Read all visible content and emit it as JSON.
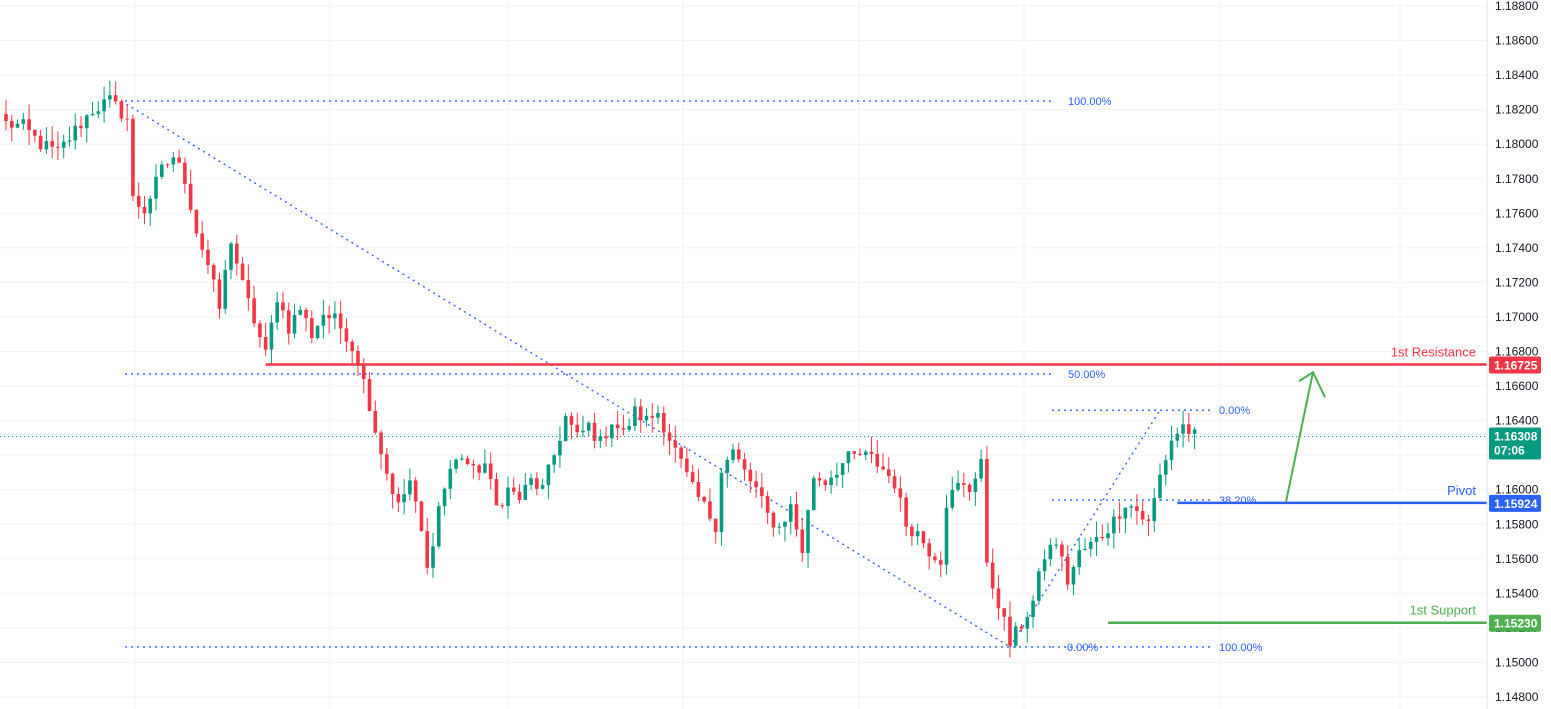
{
  "chart_data": {
    "type": "candlestick",
    "instrument_note": "",
    "y_axis": {
      "ticks": [
        "1.18800",
        "1.18600",
        "1.18400",
        "1.18200",
        "1.18000",
        "1.17800",
        "1.17600",
        "1.17400",
        "1.17200",
        "1.17000",
        "1.16800",
        "1.16600",
        "1.16400",
        "1.16200",
        "1.16000",
        "1.15800",
        "1.15600",
        "1.15400",
        "1.15200",
        "1.15000",
        "1.14800"
      ],
      "ylim": [
        1.1478,
        1.1881
      ],
      "position": "right"
    },
    "grid": true,
    "last_price": {
      "value": "1.16308",
      "countdown": "07:06",
      "color": "#089981"
    },
    "levels": [
      {
        "name": "1st Resistance",
        "price": 1.16725,
        "badge": "1.16725",
        "color": "#f23645",
        "start_index": 45
      },
      {
        "name": "Pivot",
        "price": 1.15924,
        "badge": "1.15924",
        "color": "#2962ff",
        "start_index": 203
      },
      {
        "name": "1st Support",
        "price": 1.1523,
        "badge": "1.15230",
        "color": "#4caf50",
        "start_index": 191
      }
    ],
    "fib_retracements": [
      {
        "from_index": 20,
        "to_index": 174,
        "price_high": 1.1825,
        "price_low": 1.1509,
        "labels": [
          {
            "text": "100.00%",
            "price": 1.1825
          },
          {
            "text": "50.00%",
            "price": 1.1667
          },
          {
            "text": "0.00%",
            "price": 1.1509
          }
        ]
      },
      {
        "from_index": 174,
        "to_index": 200,
        "price_high": 1.1646,
        "price_low": 1.1509,
        "labels": [
          {
            "text": "0.00%",
            "price": 1.1646
          },
          {
            "text": "38.20%",
            "price": 1.1594
          },
          {
            "text": "100.00%",
            "price": 1.1509
          }
        ]
      }
    ],
    "projection_arrow": {
      "from_price": 1.1593,
      "to_price": 1.1668,
      "color": "#4caf50"
    },
    "anchors": [
      [
        0,
        1.1812
      ],
      [
        3,
        1.181
      ],
      [
        6,
        1.18
      ],
      [
        9,
        1.1795
      ],
      [
        12,
        1.1808
      ],
      [
        15,
        1.182
      ],
      [
        18,
        1.1825
      ],
      [
        21,
        1.1815
      ],
      [
        22,
        1.1768
      ],
      [
        24,
        1.1762
      ],
      [
        27,
        1.1785
      ],
      [
        29,
        1.1793
      ],
      [
        31,
        1.178
      ],
      [
        33,
        1.175
      ],
      [
        35,
        1.173
      ],
      [
        37,
        1.1705
      ],
      [
        39,
        1.1745
      ],
      [
        41,
        1.1718
      ],
      [
        43,
        1.1698
      ],
      [
        45,
        1.1678
      ],
      [
        47,
        1.1712
      ],
      [
        49,
        1.1694
      ],
      [
        51,
        1.1705
      ],
      [
        53,
        1.169
      ],
      [
        55,
        1.1702
      ],
      [
        57,
        1.1698
      ],
      [
        59,
        1.169
      ],
      [
        61,
        1.1675
      ],
      [
        63,
        1.165
      ],
      [
        64,
        1.1635
      ],
      [
        66,
        1.161
      ],
      [
        68,
        1.159
      ],
      [
        70,
        1.1605
      ],
      [
        72,
        1.1575
      ],
      [
        73,
        1.1553
      ],
      [
        75,
        1.159
      ],
      [
        77,
        1.1612
      ],
      [
        79,
        1.162
      ],
      [
        81,
        1.161
      ],
      [
        83,
        1.1615
      ],
      [
        85,
        1.159
      ],
      [
        87,
        1.16
      ],
      [
        89,
        1.1595
      ],
      [
        91,
        1.1605
      ],
      [
        93,
        1.16
      ],
      [
        95,
        1.162
      ],
      [
        97,
        1.1642
      ],
      [
        99,
        1.163
      ],
      [
        101,
        1.1637
      ],
      [
        103,
        1.1627
      ],
      [
        105,
        1.164
      ],
      [
        107,
        1.1632
      ],
      [
        109,
        1.1645
      ],
      [
        111,
        1.164
      ],
      [
        113,
        1.1645
      ],
      [
        115,
        1.163
      ],
      [
        117,
        1.1615
      ],
      [
        119,
        1.16
      ],
      [
        121,
        1.159
      ],
      [
        123,
        1.158
      ],
      [
        124,
        1.1612
      ],
      [
        126,
        1.1622
      ],
      [
        128,
        1.161
      ],
      [
        130,
        1.16
      ],
      [
        132,
        1.1585
      ],
      [
        134,
        1.1578
      ],
      [
        136,
        1.159
      ],
      [
        138,
        1.1565
      ],
      [
        140,
        1.1608
      ],
      [
        142,
        1.1605
      ],
      [
        144,
        1.1612
      ],
      [
        146,
        1.1618
      ],
      [
        148,
        1.162
      ],
      [
        150,
        1.1618
      ],
      [
        152,
        1.1612
      ],
      [
        154,
        1.1604
      ],
      [
        156,
        1.158
      ],
      [
        158,
        1.1575
      ],
      [
        160,
        1.1565
      ],
      [
        162,
        1.156
      ],
      [
        163,
        1.1593
      ],
      [
        165,
        1.1602
      ],
      [
        167,
        1.16
      ],
      [
        169,
        1.1618
      ],
      [
        170,
        1.1554
      ],
      [
        172,
        1.1535
      ],
      [
        174,
        1.1511
      ],
      [
        176,
        1.1522
      ],
      [
        178,
        1.1535
      ],
      [
        180,
        1.1562
      ],
      [
        182,
        1.157
      ],
      [
        184,
        1.1547
      ],
      [
        186,
        1.1563
      ],
      [
        188,
        1.1568
      ],
      [
        190,
        1.1574
      ],
      [
        192,
        1.1582
      ],
      [
        194,
        1.1593
      ],
      [
        196,
        1.1588
      ],
      [
        198,
        1.158
      ],
      [
        200,
        1.1608
      ],
      [
        202,
        1.1629
      ],
      [
        204,
        1.1637
      ],
      [
        206,
        1.1631
      ]
    ],
    "candle_count": 207
  }
}
